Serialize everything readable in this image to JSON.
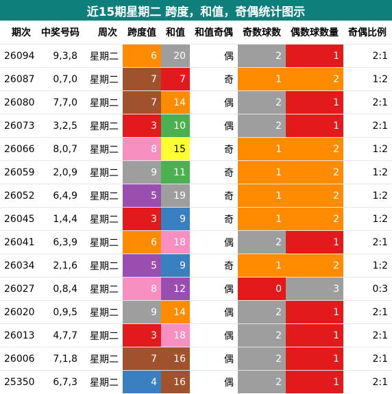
{
  "title": "近15期星期二 跨度，和值，奇偶统计图示",
  "headers": [
    "期次",
    "中奖号码",
    "周次",
    "跨度值",
    "和值",
    "和值奇偶",
    "奇数球数",
    "偶数球数量",
    "奇偶比例"
  ],
  "colors": {
    "orange": "#ff8c00",
    "brown": "#a0522d",
    "red": "#e31a1c",
    "gray": "#9e9e9e",
    "pink": "#f78fc0",
    "purple": "#9a4fb0",
    "blue": "#3a7fc0",
    "green": "#4caf50",
    "yellow": "#ffff33",
    "header_teal": "#0f7f7c"
  },
  "chart_data": {
    "type": "table",
    "title": "近15期星期二 跨度，和值，奇偶统计图示",
    "columns": [
      "期次",
      "中奖号码",
      "周次",
      "跨度值",
      "和值",
      "和值奇偶",
      "奇数球数",
      "偶数球数量",
      "奇偶比例"
    ],
    "rows": [
      {
        "period": "26094",
        "numbers": "9,3,8",
        "weekday": "星期二",
        "span": 6,
        "sum": 20,
        "sum_parity": "偶",
        "odd": 2,
        "even": 1,
        "ratio": "2:1",
        "span_color": "orange",
        "sum_color": "gray",
        "odd_color": "gray",
        "even_color": "red"
      },
      {
        "period": "26087",
        "numbers": "0,7,0",
        "weekday": "星期二",
        "span": 7,
        "sum": 7,
        "sum_parity": "奇",
        "odd": 1,
        "even": 2,
        "ratio": "1:2",
        "span_color": "brown",
        "sum_color": "red",
        "odd_color": "orange",
        "even_color": "orange"
      },
      {
        "period": "26080",
        "numbers": "7,7,0",
        "weekday": "星期二",
        "span": 7,
        "sum": 14,
        "sum_parity": "偶",
        "odd": 2,
        "even": 1,
        "ratio": "2:1",
        "span_color": "brown",
        "sum_color": "orange",
        "odd_color": "gray",
        "even_color": "red"
      },
      {
        "period": "26073",
        "numbers": "3,2,5",
        "weekday": "星期二",
        "span": 3,
        "sum": 10,
        "sum_parity": "偶",
        "odd": 2,
        "even": 1,
        "ratio": "2:1",
        "span_color": "red",
        "sum_color": "green",
        "odd_color": "gray",
        "even_color": "red"
      },
      {
        "period": "26066",
        "numbers": "8,0,7",
        "weekday": "星期二",
        "span": 8,
        "sum": 15,
        "sum_parity": "奇",
        "odd": 1,
        "even": 2,
        "ratio": "1:2",
        "span_color": "pink",
        "sum_color": "yellow",
        "odd_color": "orange",
        "even_color": "orange"
      },
      {
        "period": "26059",
        "numbers": "2,0,9",
        "weekday": "星期二",
        "span": 9,
        "sum": 11,
        "sum_parity": "奇",
        "odd": 1,
        "even": 2,
        "ratio": "1:2",
        "span_color": "gray",
        "sum_color": "green",
        "odd_color": "orange",
        "even_color": "orange"
      },
      {
        "period": "26052",
        "numbers": "6,4,9",
        "weekday": "星期二",
        "span": 5,
        "sum": 19,
        "sum_parity": "奇",
        "odd": 1,
        "even": 2,
        "ratio": "1:2",
        "span_color": "purple",
        "sum_color": "gray",
        "odd_color": "orange",
        "even_color": "orange"
      },
      {
        "period": "26045",
        "numbers": "1,4,4",
        "weekday": "星期二",
        "span": 3,
        "sum": 9,
        "sum_parity": "奇",
        "odd": 1,
        "even": 2,
        "ratio": "1:2",
        "span_color": "red",
        "sum_color": "blue",
        "odd_color": "orange",
        "even_color": "orange"
      },
      {
        "period": "26041",
        "numbers": "6,3,9",
        "weekday": "星期二",
        "span": 6,
        "sum": 18,
        "sum_parity": "偶",
        "odd": 2,
        "even": 1,
        "ratio": "2:1",
        "span_color": "orange",
        "sum_color": "pink",
        "odd_color": "gray",
        "even_color": "red"
      },
      {
        "period": "26034",
        "numbers": "2,1,6",
        "weekday": "星期二",
        "span": 5,
        "sum": 9,
        "sum_parity": "奇",
        "odd": 1,
        "even": 2,
        "ratio": "1:2",
        "span_color": "purple",
        "sum_color": "blue",
        "odd_color": "orange",
        "even_color": "orange"
      },
      {
        "period": "26027",
        "numbers": "0,8,4",
        "weekday": "星期二",
        "span": 8,
        "sum": 12,
        "sum_parity": "偶",
        "odd": 0,
        "even": 3,
        "ratio": "0:3",
        "span_color": "pink",
        "sum_color": "purple",
        "odd_color": "red",
        "even_color": "gray"
      },
      {
        "period": "26020",
        "numbers": "0,9,5",
        "weekday": "星期二",
        "span": 9,
        "sum": 14,
        "sum_parity": "偶",
        "odd": 2,
        "even": 1,
        "ratio": "2:1",
        "span_color": "gray",
        "sum_color": "orange",
        "odd_color": "gray",
        "even_color": "red"
      },
      {
        "period": "26013",
        "numbers": "4,7,7",
        "weekday": "星期二",
        "span": 3,
        "sum": 18,
        "sum_parity": "偶",
        "odd": 2,
        "even": 1,
        "ratio": "2:1",
        "span_color": "red",
        "sum_color": "pink",
        "odd_color": "gray",
        "even_color": "red"
      },
      {
        "period": "26006",
        "numbers": "7,1,8",
        "weekday": "星期二",
        "span": 7,
        "sum": 16,
        "sum_parity": "偶",
        "odd": 2,
        "even": 1,
        "ratio": "2:1",
        "span_color": "brown",
        "sum_color": "brown",
        "odd_color": "gray",
        "even_color": "red"
      },
      {
        "period": "25350",
        "numbers": "6,7,3",
        "weekday": "星期二",
        "span": 4,
        "sum": 16,
        "sum_parity": "偶",
        "odd": 2,
        "even": 1,
        "ratio": "2:1",
        "span_color": "blue",
        "sum_color": "brown",
        "odd_color": "gray",
        "even_color": "red"
      }
    ]
  }
}
